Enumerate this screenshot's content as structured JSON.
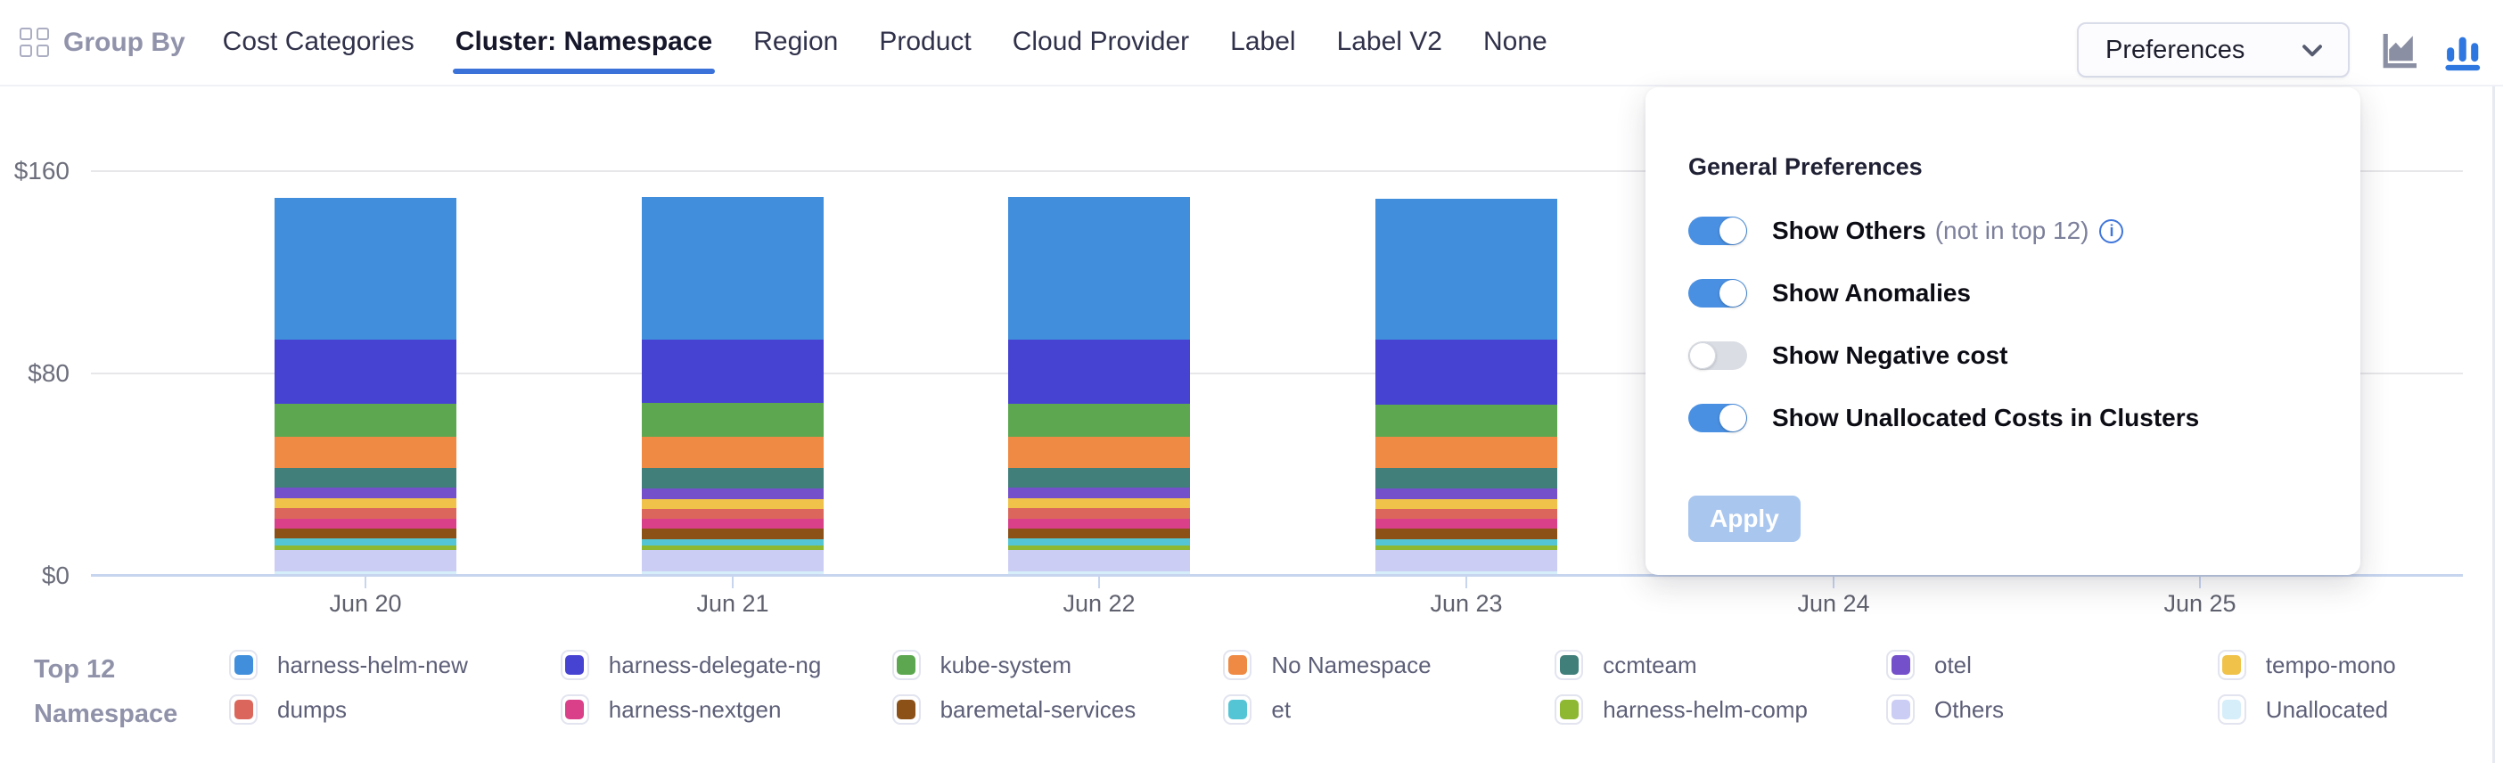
{
  "header": {
    "group_by_label": "Group By",
    "tabs": [
      {
        "label": "Cost Categories",
        "active": false
      },
      {
        "label": "Cluster: Namespace",
        "active": true
      },
      {
        "label": "Region",
        "active": false
      },
      {
        "label": "Product",
        "active": false
      },
      {
        "label": "Cloud Provider",
        "active": false
      },
      {
        "label": "Label",
        "active": false
      },
      {
        "label": "Label V2",
        "active": false
      },
      {
        "label": "None",
        "active": false
      }
    ],
    "preferences_label": "Preferences",
    "chart_type_toggle": {
      "area_active": false,
      "column_active": true
    }
  },
  "preferences_panel": {
    "title": "General Preferences",
    "toggles": [
      {
        "label": "Show Others",
        "suffix": "(not in top 12)",
        "info": true,
        "on": true
      },
      {
        "label": "Show Anomalies",
        "suffix": "",
        "info": false,
        "on": true
      },
      {
        "label": "Show Negative cost",
        "suffix": "",
        "info": false,
        "on": false
      },
      {
        "label": "Show Unallocated Costs in Clusters",
        "suffix": "",
        "info": false,
        "on": true
      }
    ],
    "apply_label": "Apply",
    "apply_enabled": false
  },
  "chart_data": {
    "type": "bar",
    "stacked": true,
    "x": [
      "Jun 20",
      "Jun 21",
      "Jun 22",
      "Jun 23",
      "Jun 24",
      "Jun 25"
    ],
    "ylim": [
      0,
      160
    ],
    "y_ticks": [
      {
        "label": "$0",
        "value": 0
      },
      {
        "label": "$80",
        "value": 80
      },
      {
        "label": "$160",
        "value": 160
      }
    ],
    "grid": true,
    "legend_position": "bottom",
    "series": [
      {
        "name": "Unallocated",
        "color": "#d6eef9",
        "values": [
          1.8,
          1.8,
          1.8,
          1.8,
          null,
          null
        ]
      },
      {
        "name": "Others",
        "color": "#cccdf4",
        "values": [
          8.5,
          8.4,
          8.5,
          8.3,
          null,
          null
        ]
      },
      {
        "name": "harness-helm-comp",
        "color": "#8fb832",
        "values": [
          1.8,
          1.8,
          1.8,
          1.8,
          null,
          null
        ]
      },
      {
        "name": "et",
        "color": "#54c5d5",
        "values": [
          2.5,
          2.5,
          2.5,
          2.5,
          null,
          null
        ]
      },
      {
        "name": "baremetal-services",
        "color": "#8b5117",
        "values": [
          4.2,
          4.1,
          4.2,
          4.2,
          null,
          null
        ]
      },
      {
        "name": "harness-nextgen",
        "color": "#d94089",
        "values": [
          3.9,
          3.9,
          3.9,
          3.9,
          null,
          null
        ]
      },
      {
        "name": "dumps",
        "color": "#db675c",
        "values": [
          3.9,
          4.0,
          3.9,
          3.9,
          null,
          null
        ]
      },
      {
        "name": "tempo-mono",
        "color": "#f0c249",
        "values": [
          3.9,
          3.8,
          3.9,
          3.9,
          null,
          null
        ]
      },
      {
        "name": "otel",
        "color": "#7450cb",
        "values": [
          4.2,
          4.2,
          4.2,
          4.2,
          null,
          null
        ]
      },
      {
        "name": "ccmteam",
        "color": "#417f7b",
        "values": [
          8.1,
          8.2,
          8.1,
          8.1,
          null,
          null
        ]
      },
      {
        "name": "No Namespace",
        "color": "#ee8a43",
        "values": [
          12.3,
          12.4,
          12.3,
          12.2,
          null,
          null
        ]
      },
      {
        "name": "kube-system",
        "color": "#5ca750",
        "values": [
          13.0,
          13.1,
          13.0,
          13.0,
          null,
          null
        ]
      },
      {
        "name": "harness-delegate-ng",
        "color": "#4743d2",
        "values": [
          25.4,
          25.3,
          25.4,
          25.5,
          null,
          null
        ]
      },
      {
        "name": "harness-helm-new",
        "color": "#418fdc",
        "values": [
          56.0,
          56.2,
          56.3,
          55.9,
          null,
          null
        ]
      }
    ]
  },
  "legend": {
    "title": "Top 12 Namespace",
    "items": [
      {
        "label": "harness-helm-new",
        "color": "#418fdc"
      },
      {
        "label": "dumps",
        "color": "#db675c"
      },
      {
        "label": "harness-delegate-ng",
        "color": "#4743d2"
      },
      {
        "label": "harness-nextgen",
        "color": "#d94089"
      },
      {
        "label": "kube-system",
        "color": "#5ca750"
      },
      {
        "label": "baremetal-services",
        "color": "#8b5117"
      },
      {
        "label": "No Namespace",
        "color": "#ee8a43"
      },
      {
        "label": "et",
        "color": "#54c5d5"
      },
      {
        "label": "ccmteam",
        "color": "#417f7b"
      },
      {
        "label": "harness-helm-comp",
        "color": "#8fb832"
      },
      {
        "label": "otel",
        "color": "#7450cb"
      },
      {
        "label": "Others",
        "color": "#cccdf4"
      },
      {
        "label": "tempo-mono",
        "color": "#f0c249"
      },
      {
        "label": "Unallocated",
        "color": "#d6eef9"
      }
    ]
  }
}
